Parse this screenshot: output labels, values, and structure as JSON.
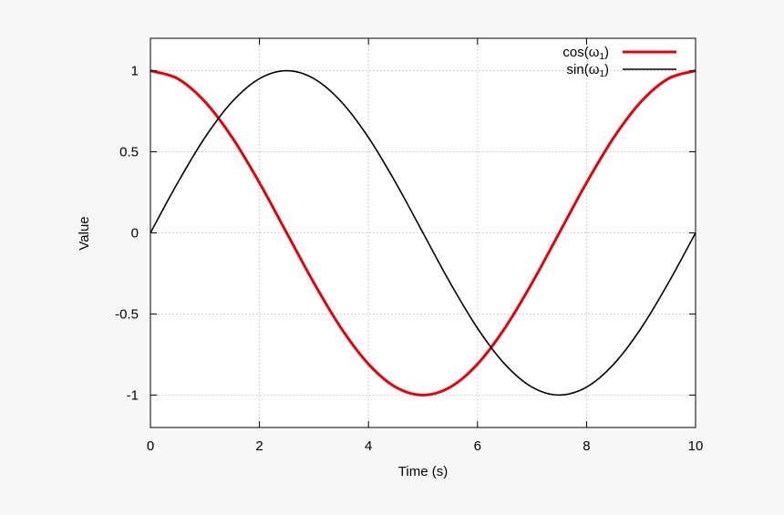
{
  "chart_data": {
    "type": "line",
    "title": "",
    "xlabel": "Time (s)",
    "ylabel": "Value",
    "xlim": [
      0,
      10
    ],
    "ylim": [
      -1.2,
      1.2
    ],
    "xticks": [
      0,
      2,
      4,
      6,
      8,
      10
    ],
    "yticks": [
      1,
      0.5,
      0,
      -0.5,
      -1
    ],
    "xtick_labels": [
      "0",
      "2",
      "4",
      "6",
      "8",
      "10"
    ],
    "ytick_labels": [
      "1",
      "0.5",
      "0",
      "-0.5",
      "-1"
    ],
    "grid": true,
    "legend_position": "top-right",
    "x": [
      0,
      0.5,
      1,
      1.5,
      2,
      2.5,
      3,
      3.5,
      4,
      4.5,
      5,
      5.5,
      6,
      6.5,
      7,
      7.5,
      8,
      8.5,
      9,
      9.5,
      10
    ],
    "series": [
      {
        "legend_main": "cos(ω",
        "legend_sub": "1",
        "legend_close": ")",
        "color": "#e8000b",
        "values": [
          1,
          0.951,
          0.809,
          0.588,
          0.309,
          0,
          -0.309,
          -0.588,
          -0.809,
          -0.951,
          -1,
          -0.951,
          -0.809,
          -0.588,
          -0.309,
          0,
          0.309,
          0.588,
          0.809,
          0.951,
          1
        ]
      },
      {
        "legend_main": "sin(ω",
        "legend_sub": "1",
        "legend_close": ")",
        "color": "#000000",
        "values": [
          0,
          0.309,
          0.588,
          0.809,
          0.951,
          1,
          0.951,
          0.809,
          0.588,
          0.309,
          0,
          -0.309,
          -0.588,
          -0.809,
          -0.951,
          -1,
          -0.951,
          -0.809,
          -0.588,
          -0.309,
          0
        ]
      }
    ]
  }
}
